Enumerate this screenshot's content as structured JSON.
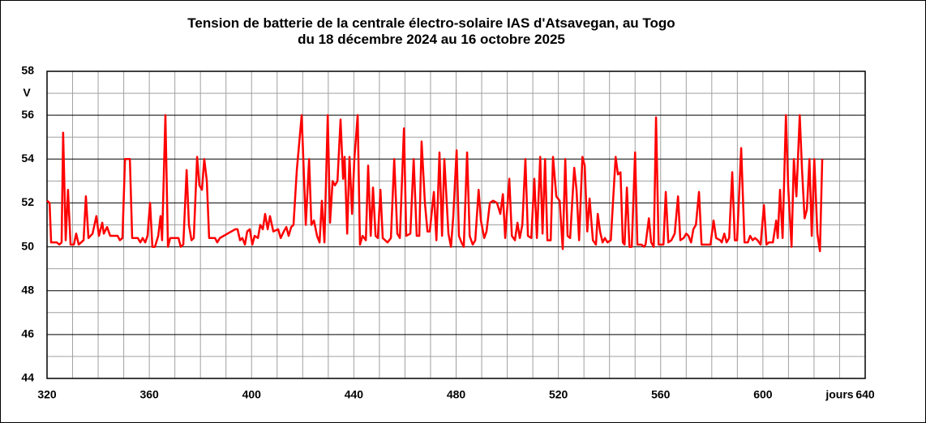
{
  "chart_data": {
    "type": "line",
    "title": "Tension de batterie de la centrale électro-solaire IAS d'Atsavegan, au Togo",
    "subtitle": "du 18 décembre 2024 au 16 octobre 2025",
    "xlabel": "jours",
    "ylabel": "V",
    "xlim": [
      320,
      640
    ],
    "ylim": [
      44,
      58
    ],
    "xticks": [
      320,
      360,
      400,
      440,
      480,
      520,
      560,
      600,
      640
    ],
    "yticks": [
      44,
      46,
      48,
      50,
      52,
      54,
      56,
      58
    ],
    "x_grid": [
      330,
      340,
      350,
      360,
      370,
      380,
      390,
      400,
      410,
      420,
      430,
      440,
      450,
      460,
      470,
      480,
      490,
      500,
      510,
      520,
      530,
      540,
      550,
      560,
      570,
      580,
      590,
      600,
      610,
      620,
      630
    ],
    "y_minor_grid": [
      45,
      47,
      49,
      51,
      53,
      55,
      57
    ],
    "grid": true,
    "series": [
      {
        "color": "#ff0000",
        "x": [
          320.0,
          321.0,
          321.6,
          323.8,
          324.8,
          325.7,
          326.3,
          327.3,
          328.2,
          329.2,
          330.5,
          331.4,
          332.4,
          334.3,
          335.2,
          336.2,
          337.8,
          339.3,
          340.3,
          341.6,
          342.2,
          343.5,
          344.7,
          347.6,
          348.5,
          349.5,
          350.5,
          352.4,
          353.3,
          355.5,
          356.5,
          357.4,
          358.4,
          359.3,
          360.3,
          361.2,
          362.2,
          363.5,
          364.4,
          365.0,
          366.3,
          367.3,
          368.2,
          369.2,
          371.4,
          372.3,
          373.3,
          374.6,
          375.5,
          376.5,
          377.4,
          378.7,
          379.6,
          380.6,
          381.5,
          382.5,
          383.4,
          385.7,
          386.6,
          387.6,
          393.6,
          394.5,
          395.5,
          396.4,
          397.4,
          398.3,
          399.3,
          400.3,
          401.2,
          402.5,
          403.4,
          404.4,
          405.3,
          406.3,
          407.2,
          408.5,
          410.4,
          411.4,
          412.6,
          413.6,
          414.5,
          415.5,
          416.4,
          417.7,
          419.6,
          421.2,
          422.5,
          423.4,
          424.4,
          425.6,
          426.6,
          427.5,
          428.5,
          429.8,
          430.7,
          431.7,
          432.6,
          433.6,
          434.8,
          435.8,
          436.4,
          437.4,
          438.3,
          439.3,
          440.2,
          441.5,
          442.4,
          443.4,
          444.7,
          445.6,
          446.6,
          447.5,
          448.5,
          449.4,
          450.4,
          451.3,
          453.2,
          454.5,
          455.8,
          457.0,
          458.0,
          459.6,
          460.5,
          462.1,
          463.4,
          464.6,
          465.6,
          466.5,
          467.8,
          468.8,
          469.7,
          471.3,
          472.3,
          473.5,
          474.5,
          475.4,
          477.0,
          478.0,
          478.9,
          480.2,
          481.1,
          482.1,
          483.0,
          484.3,
          485.3,
          486.5,
          487.5,
          488.8,
          489.7,
          491.0,
          491.9,
          493.2,
          494.5,
          496.0,
          497.3,
          498.3,
          499.2,
          500.8,
          501.8,
          503.0,
          504.0,
          504.9,
          505.9,
          507.1,
          508.1,
          509.4,
          510.6,
          511.6,
          512.9,
          513.8,
          514.8,
          515.7,
          517.0,
          517.9,
          519.2,
          520.5,
          521.7,
          522.7,
          523.6,
          524.6,
          526.2,
          527.1,
          528.1,
          529.4,
          530.3,
          531.3,
          532.2,
          533.5,
          534.7,
          535.4,
          536.3,
          537.3,
          538.2,
          539.2,
          540.5,
          542.4,
          543.3,
          544.3,
          545.2,
          545.9,
          546.8,
          547.8,
          548.7,
          550.0,
          550.9,
          552.5,
          553.5,
          554.1,
          555.4,
          556.3,
          557.3,
          558.2,
          559.2,
          560.1,
          561.1,
          562.0,
          563.0,
          564.2,
          565.5,
          566.8,
          567.7,
          569.0,
          570.0,
          570.9,
          571.9,
          572.8,
          573.8,
          575.0,
          576.0,
          576.9,
          578.2,
          579.5,
          580.7,
          581.7,
          583.3,
          583.9,
          584.9,
          585.8,
          586.8,
          588.0,
          589.0,
          589.9,
          591.5,
          592.8,
          594.1,
          595.0,
          596.0,
          596.9,
          597.9,
          599.1,
          600.4,
          601.4,
          602.3,
          603.9,
          605.2,
          605.8,
          606.7,
          607.7,
          609.0,
          609.9,
          611.2,
          612.1,
          613.1,
          614.4,
          615.3,
          616.3,
          617.2,
          618.2,
          619.1,
          620.1,
          621.3,
          622.3,
          623.2
        ],
        "values": [
          52.1,
          52.0,
          50.2,
          50.2,
          50.1,
          50.2,
          55.2,
          50.3,
          52.6,
          50.1,
          50.1,
          50.6,
          50.1,
          50.3,
          52.3,
          50.4,
          50.6,
          51.4,
          50.5,
          51.1,
          50.6,
          50.9,
          50.5,
          50.5,
          50.3,
          50.4,
          54.0,
          54.0,
          50.4,
          50.4,
          50.2,
          50.4,
          50.2,
          50.5,
          52.0,
          50.0,
          50.0,
          50.5,
          51.4,
          50.3,
          56.0,
          50.0,
          50.4,
          50.4,
          50.4,
          50.0,
          50.1,
          53.5,
          51.0,
          50.3,
          50.4,
          54.1,
          52.8,
          52.6,
          54.0,
          53.0,
          50.4,
          50.4,
          50.2,
          50.4,
          50.8,
          50.8,
          50.3,
          50.4,
          50.1,
          50.7,
          50.8,
          50.1,
          50.5,
          50.4,
          51.0,
          50.8,
          51.5,
          50.8,
          51.4,
          50.7,
          50.8,
          50.4,
          50.7,
          50.9,
          50.5,
          50.9,
          51.0,
          53.5,
          56.0,
          51.0,
          54.0,
          51.0,
          51.2,
          50.5,
          50.2,
          52.1,
          50.2,
          56.0,
          51.1,
          53.0,
          52.8,
          53.0,
          55.8,
          53.1,
          54.1,
          50.6,
          54.1,
          51.5,
          54.0,
          56.0,
          50.1,
          50.5,
          50.3,
          53.7,
          50.5,
          52.7,
          50.5,
          50.4,
          52.6,
          50.4,
          50.2,
          50.4,
          54.0,
          50.6,
          50.4,
          55.4,
          50.5,
          50.6,
          54.0,
          50.5,
          50.5,
          54.8,
          52.0,
          50.7,
          50.7,
          52.5,
          50.3,
          54.3,
          50.5,
          54.0,
          50.6,
          50.0,
          51.4,
          54.4,
          50.5,
          50.2,
          50.0,
          54.3,
          50.5,
          50.1,
          50.3,
          52.6,
          51.2,
          50.4,
          50.7,
          52.0,
          52.1,
          52.0,
          51.5,
          52.4,
          50.4,
          53.1,
          50.5,
          50.3,
          51.1,
          50.4,
          51.0,
          54.0,
          50.5,
          50.4,
          53.1,
          50.4,
          54.1,
          50.6,
          54.0,
          50.3,
          50.3,
          54.1,
          52.3,
          52.1,
          49.9,
          54.0,
          50.5,
          50.4,
          53.6,
          52.6,
          50.3,
          54.1,
          53.7,
          50.7,
          52.2,
          50.3,
          50.1,
          51.5,
          50.7,
          50.2,
          50.4,
          50.2,
          50.3,
          54.1,
          53.3,
          53.4,
          50.2,
          50.1,
          52.7,
          50.0,
          50.0,
          54.3,
          50.1,
          50.1,
          50.0,
          50.1,
          51.3,
          50.2,
          50.0,
          55.9,
          50.1,
          50.1,
          50.1,
          52.5,
          50.2,
          50.3,
          50.6,
          52.3,
          50.3,
          50.4,
          50.6,
          50.5,
          50.2,
          50.8,
          51.0,
          52.5,
          50.1,
          50.1,
          50.1,
          50.1,
          51.2,
          50.4,
          50.3,
          50.2,
          50.6,
          50.2,
          50.4,
          53.4,
          50.3,
          50.3,
          54.5,
          50.2,
          50.2,
          50.5,
          50.3,
          50.4,
          50.3,
          50.1,
          51.9,
          50.1,
          50.2,
          50.2,
          51.2,
          50.4,
          52.6,
          50.4,
          56.0,
          52.7,
          50.0,
          54.0,
          52.3,
          56.0,
          53.5,
          51.3,
          51.7,
          54.0,
          50.5,
          54.0,
          50.6,
          49.8,
          54.0
        ]
      }
    ]
  }
}
